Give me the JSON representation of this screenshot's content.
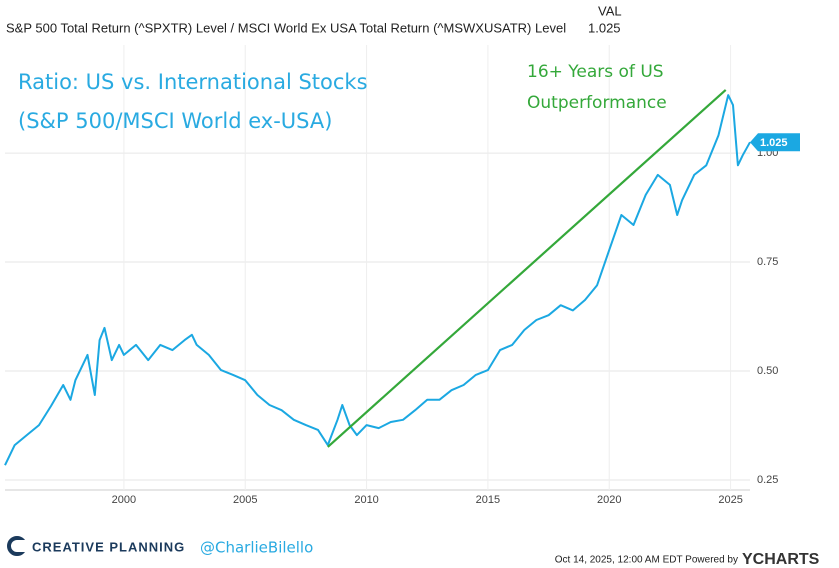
{
  "chart_data": {
    "type": "line",
    "title": "S&P 500 Total Return (^SPXTR) Level / MSCI World Ex USA Total Return (^MSWXUSATR) Level",
    "value_header": "VAL",
    "annotations": [
      "Ratio: US vs. International Stocks",
      "(S&P 500/MSCI World ex-USA)",
      "16+ Years of US",
      "Outperformance"
    ],
    "footer": {
      "brand": "CREATIVE PLANNING",
      "handle": "@CharlieBilello",
      "source": "Oct 14, 2025, 12:00 AM EDT Powered by",
      "logo": "YCHARTS"
    },
    "xlim": [
      1995.1,
      2025.8
    ],
    "ylim": [
      0.227,
      1.248
    ],
    "xticks": [
      2000,
      2005,
      2010,
      2015,
      2020,
      2025
    ],
    "yticks": [
      {
        "value": 0.25,
        "label": "0.25"
      },
      {
        "value": 0.5,
        "label": "0.50"
      },
      {
        "value": 0.75,
        "label": "0.75"
      },
      {
        "value": 1.0,
        "label": "1.00"
      }
    ],
    "grid": true,
    "series": [
      {
        "name": "S&P 500 / MSCI World ex-USA",
        "color": "#1ba8e2",
        "x": [
          1995.1,
          1995.5,
          1996.0,
          1996.5,
          1997.0,
          1997.5,
          1997.8,
          1998.0,
          1998.5,
          1998.8,
          1999.0,
          1999.2,
          1999.5,
          1999.8,
          2000.0,
          2000.5,
          2001.0,
          2001.5,
          2002.0,
          2002.5,
          2002.8,
          2003.0,
          2003.5,
          2004.0,
          2004.5,
          2005.0,
          2005.5,
          2006.0,
          2006.5,
          2007.0,
          2007.5,
          2008.0,
          2008.4,
          2008.8,
          2009.0,
          2009.3,
          2009.6,
          2010.0,
          2010.5,
          2011.0,
          2011.5,
          2012.0,
          2012.5,
          2013.0,
          2013.5,
          2014.0,
          2014.5,
          2015.0,
          2015.5,
          2016.0,
          2016.5,
          2017.0,
          2017.5,
          2018.0,
          2018.5,
          2019.0,
          2019.5,
          2020.0,
          2020.5,
          2021.0,
          2021.5,
          2022.0,
          2022.5,
          2022.8,
          2023.0,
          2023.5,
          2024.0,
          2024.5,
          2024.9,
          2025.1,
          2025.3,
          2025.5,
          2025.8
        ],
        "values": [
          0.284,
          0.33,
          0.353,
          0.376,
          0.42,
          0.468,
          0.434,
          0.479,
          0.537,
          0.445,
          0.571,
          0.599,
          0.525,
          0.56,
          0.537,
          0.56,
          0.525,
          0.56,
          0.548,
          0.571,
          0.583,
          0.56,
          0.537,
          0.502,
          0.491,
          0.479,
          0.445,
          0.422,
          0.41,
          0.388,
          0.376,
          0.365,
          0.33,
          0.388,
          0.422,
          0.376,
          0.353,
          0.376,
          0.369,
          0.383,
          0.388,
          0.41,
          0.434,
          0.434,
          0.456,
          0.468,
          0.491,
          0.502,
          0.548,
          0.56,
          0.594,
          0.617,
          0.628,
          0.651,
          0.639,
          0.663,
          0.697,
          0.778,
          0.858,
          0.835,
          0.904,
          0.95,
          0.927,
          0.858,
          0.892,
          0.95,
          0.972,
          1.041,
          1.133,
          1.11,
          0.972,
          0.995,
          1.025
        ],
        "value_labels": {
          "last": "1.025"
        }
      },
      {
        "name": "16+ Years of US Outperformance",
        "color": "#34a83a",
        "x": [
          2008.4,
          2024.8
        ],
        "values": [
          0.326,
          1.145
        ]
      }
    ]
  }
}
